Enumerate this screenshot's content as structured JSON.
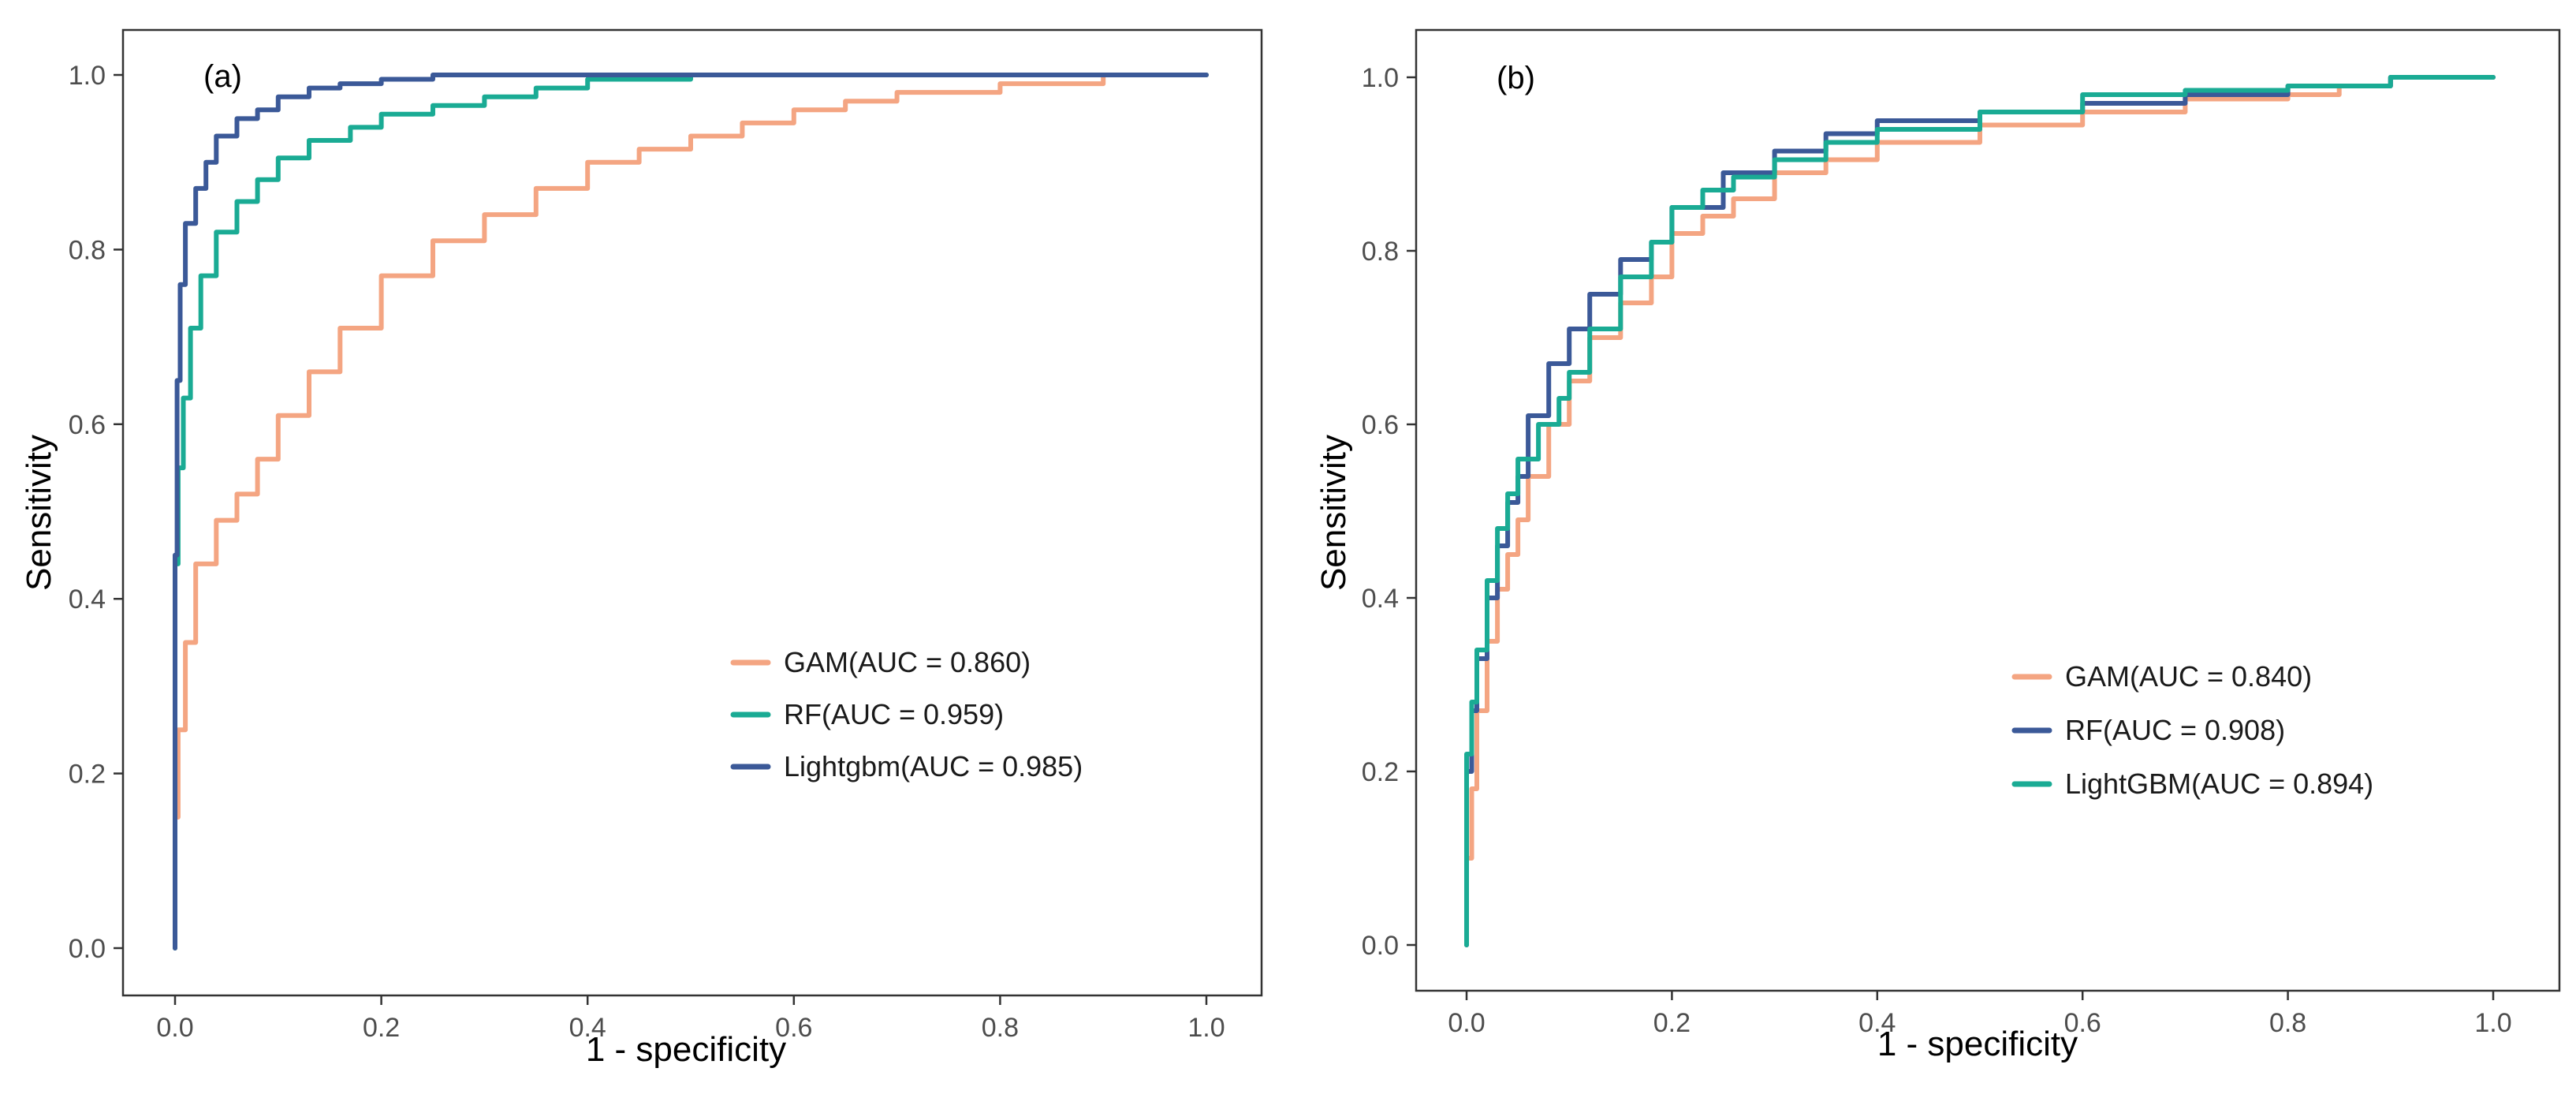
{
  "chart_data": [
    {
      "type": "line",
      "panel_label": "(a)",
      "xlabel": "1 - specificity",
      "ylabel": "Sensitivity",
      "xlim": [
        0,
        1
      ],
      "ylim": [
        0,
        1
      ],
      "x_ticks": [
        0.0,
        0.2,
        0.4,
        0.6,
        0.8,
        1.0
      ],
      "y_ticks": [
        0.0,
        0.2,
        0.4,
        0.6,
        0.8,
        1.0
      ],
      "x_tick_labels": [
        "0.0",
        "0.2",
        "0.4",
        "0.6",
        "0.8",
        "1.0"
      ],
      "y_tick_labels": [
        "0.0",
        "0.2",
        "0.4",
        "0.6",
        "0.8",
        "1.0"
      ],
      "grid": false,
      "legend_position": "bottom-right",
      "series": [
        {
          "name": "GAM(AUC = 0.860)",
          "color": "#f4a582",
          "x": [
            0,
            0.003,
            0.01,
            0.02,
            0.04,
            0.06,
            0.08,
            0.1,
            0.13,
            0.16,
            0.2,
            0.25,
            0.3,
            0.35,
            0.4,
            0.45,
            0.5,
            0.55,
            0.6,
            0.65,
            0.7,
            0.8,
            0.9,
            1.0
          ],
          "y": [
            0,
            0.15,
            0.25,
            0.35,
            0.44,
            0.49,
            0.52,
            0.56,
            0.61,
            0.66,
            0.71,
            0.77,
            0.81,
            0.84,
            0.87,
            0.9,
            0.915,
            0.93,
            0.945,
            0.96,
            0.97,
            0.98,
            0.99,
            1.0
          ]
        },
        {
          "name": "RF(AUC = 0.959)",
          "color": "#1aab94",
          "x": [
            0,
            0.003,
            0.008,
            0.015,
            0.025,
            0.04,
            0.06,
            0.08,
            0.1,
            0.13,
            0.17,
            0.2,
            0.25,
            0.3,
            0.35,
            0.4,
            0.5,
            0.6,
            1.0
          ],
          "y": [
            0,
            0.44,
            0.55,
            0.63,
            0.71,
            0.77,
            0.82,
            0.855,
            0.88,
            0.905,
            0.925,
            0.94,
            0.955,
            0.965,
            0.975,
            0.985,
            0.995,
            1.0,
            1.0
          ]
        },
        {
          "name": "Lightgbm(AUC = 0.985)",
          "color": "#3b5998",
          "x": [
            0,
            0.002,
            0.005,
            0.01,
            0.02,
            0.03,
            0.04,
            0.06,
            0.08,
            0.1,
            0.13,
            0.16,
            0.2,
            0.25,
            0.3,
            0.5,
            1.0
          ],
          "y": [
            0,
            0.45,
            0.65,
            0.76,
            0.83,
            0.87,
            0.9,
            0.93,
            0.95,
            0.96,
            0.975,
            0.985,
            0.99,
            0.995,
            1.0,
            1.0,
            1.0
          ]
        }
      ]
    },
    {
      "type": "line",
      "panel_label": "(b)",
      "xlabel": "1 - specificity",
      "ylabel": "Sensitivity",
      "xlim": [
        0,
        1
      ],
      "ylim": [
        0,
        1
      ],
      "x_ticks": [
        0.0,
        0.2,
        0.4,
        0.6,
        0.8,
        1.0
      ],
      "y_ticks": [
        0.0,
        0.2,
        0.4,
        0.6,
        0.8,
        1.0
      ],
      "x_tick_labels": [
        "0.0",
        "0.2",
        "0.4",
        "0.6",
        "0.8",
        "1.0"
      ],
      "y_tick_labels": [
        "0.0",
        "0.2",
        "0.4",
        "0.6",
        "0.8",
        "1.0"
      ],
      "grid": false,
      "legend_position": "bottom-right",
      "series": [
        {
          "name": "GAM(AUC = 0.840)",
          "color": "#f4a582",
          "x": [
            0,
            0.005,
            0.01,
            0.02,
            0.03,
            0.04,
            0.05,
            0.06,
            0.08,
            0.1,
            0.12,
            0.15,
            0.18,
            0.2,
            0.23,
            0.26,
            0.3,
            0.35,
            0.4,
            0.5,
            0.6,
            0.7,
            0.8,
            0.85,
            0.9,
            1.0
          ],
          "y": [
            0,
            0.1,
            0.18,
            0.27,
            0.35,
            0.41,
            0.45,
            0.49,
            0.54,
            0.6,
            0.65,
            0.7,
            0.74,
            0.77,
            0.82,
            0.84,
            0.86,
            0.89,
            0.905,
            0.925,
            0.945,
            0.96,
            0.975,
            0.98,
            0.99,
            1.0
          ]
        },
        {
          "name": "RF(AUC = 0.908)",
          "color": "#3b5998",
          "x": [
            0,
            0.005,
            0.01,
            0.02,
            0.03,
            0.04,
            0.05,
            0.06,
            0.08,
            0.1,
            0.12,
            0.15,
            0.18,
            0.2,
            0.25,
            0.3,
            0.35,
            0.4,
            0.5,
            0.6,
            0.7,
            0.8,
            0.9,
            1.0
          ],
          "y": [
            0,
            0.2,
            0.27,
            0.33,
            0.4,
            0.46,
            0.51,
            0.54,
            0.61,
            0.67,
            0.71,
            0.75,
            0.79,
            0.81,
            0.85,
            0.89,
            0.915,
            0.935,
            0.95,
            0.96,
            0.97,
            0.98,
            0.99,
            1.0
          ]
        },
        {
          "name": "LightGBM(AUC = 0.894)",
          "color": "#1aab94",
          "x": [
            0,
            0.005,
            0.01,
            0.02,
            0.03,
            0.04,
            0.05,
            0.07,
            0.09,
            0.1,
            0.12,
            0.15,
            0.18,
            0.2,
            0.23,
            0.26,
            0.3,
            0.35,
            0.4,
            0.5,
            0.6,
            0.7,
            0.8,
            0.9,
            1.0
          ],
          "y": [
            0,
            0.22,
            0.28,
            0.34,
            0.42,
            0.48,
            0.52,
            0.56,
            0.6,
            0.63,
            0.66,
            0.71,
            0.77,
            0.81,
            0.85,
            0.87,
            0.885,
            0.905,
            0.925,
            0.94,
            0.96,
            0.98,
            0.985,
            0.99,
            1.0
          ]
        }
      ]
    }
  ]
}
